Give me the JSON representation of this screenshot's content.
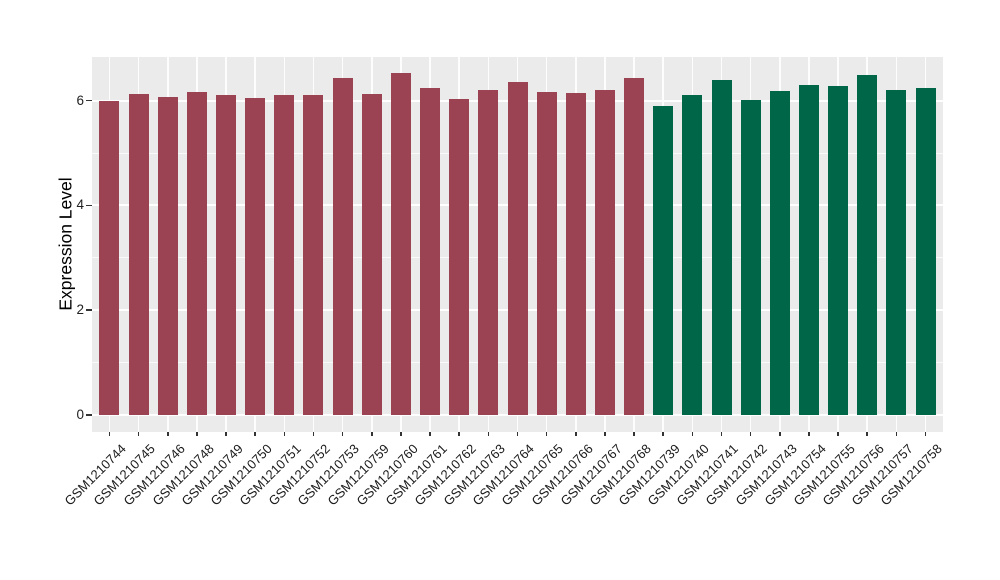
{
  "chart_data": {
    "type": "bar",
    "title": "",
    "xlabel": "",
    "ylabel": "Expression Level",
    "ylim": [
      0,
      6.85
    ],
    "yticks": [
      0,
      2,
      4,
      6
    ],
    "grid": "white major and minor horizontal lines at integers 0-6 and vertical lines at each category, on light gray panel",
    "legend": "none",
    "panel_background": "#EBEBEB",
    "categories": [
      "GSM1210744",
      "GSM1210745",
      "GSM1210746",
      "GSM1210748",
      "GSM1210749",
      "GSM1210750",
      "GSM1210751",
      "GSM1210752",
      "GSM1210753",
      "GSM1210759",
      "GSM1210760",
      "GSM1210761",
      "GSM1210762",
      "GSM1210763",
      "GSM1210764",
      "GSM1210765",
      "GSM1210766",
      "GSM1210767",
      "GSM1210768",
      "GSM1210739",
      "GSM1210740",
      "GSM1210741",
      "GSM1210742",
      "GSM1210743",
      "GSM1210754",
      "GSM1210755",
      "GSM1210756",
      "GSM1210757",
      "GSM1210758"
    ],
    "values": [
      6.0,
      6.12,
      6.08,
      6.16,
      6.1,
      6.05,
      6.11,
      6.11,
      6.43,
      6.13,
      6.52,
      6.25,
      6.04,
      6.21,
      6.36,
      6.16,
      6.15,
      6.2,
      6.44,
      5.9,
      6.1,
      6.4,
      6.02,
      6.19,
      6.3,
      6.28,
      6.49,
      6.21,
      6.25
    ],
    "groups": [
      "A",
      "A",
      "A",
      "A",
      "A",
      "A",
      "A",
      "A",
      "A",
      "A",
      "A",
      "A",
      "A",
      "A",
      "A",
      "A",
      "A",
      "A",
      "A",
      "B",
      "B",
      "B",
      "B",
      "B",
      "B",
      "B",
      "B",
      "B",
      "B"
    ],
    "group_colors": {
      "A": "#9B4253",
      "B": "#006648"
    }
  }
}
